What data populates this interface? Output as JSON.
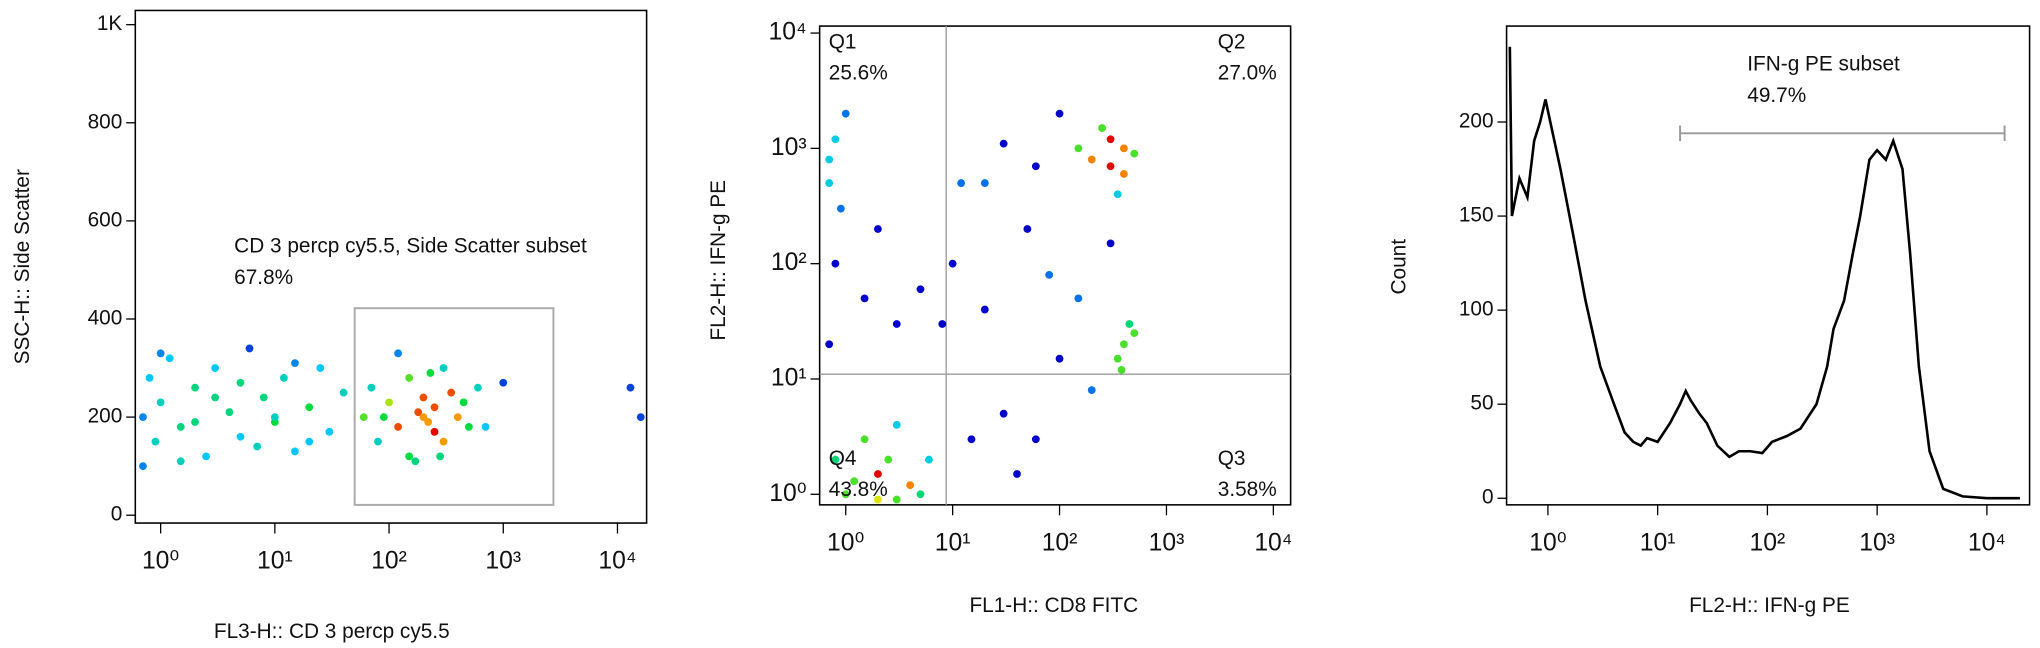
{
  "chart_data": [
    {
      "type": "scatter",
      "xlabel": "FL3-H:: CD 3 percp cy5.5",
      "ylabel": "SSC-H:: Side Scatter",
      "xscale": "log",
      "yscale": "linear",
      "xlim": [
        0.6,
        18000
      ],
      "ylim": [
        -16,
        1029
      ],
      "xticks": [
        {
          "value": 1,
          "label": "10⁰"
        },
        {
          "value": 10,
          "label": "10¹"
        },
        {
          "value": 100,
          "label": "10²"
        },
        {
          "value": 1000,
          "label": "10³"
        },
        {
          "value": 10000,
          "label": "10⁴"
        }
      ],
      "yticks": [
        0,
        200,
        400,
        600,
        800,
        {
          "value": 1000,
          "label": "1K"
        }
      ],
      "x": [
        0.7,
        0.8,
        0.9,
        1,
        1.2,
        1.5,
        2,
        2.5,
        3,
        4,
        5,
        6,
        8,
        10,
        12,
        15,
        20,
        25,
        30,
        40,
        0.7,
        1,
        1.5,
        2,
        3,
        5,
        7,
        10,
        15,
        20,
        60,
        70,
        80,
        100,
        120,
        150,
        150,
        180,
        200,
        200,
        220,
        250,
        250,
        300,
        300,
        350,
        400,
        450,
        500,
        120,
        170,
        230,
        280,
        90,
        600,
        700,
        1000,
        13000,
        16000
      ],
      "y": [
        200,
        280,
        150,
        230,
        320,
        180,
        260,
        120,
        300,
        210,
        160,
        340,
        240,
        190,
        280,
        130,
        220,
        300,
        170,
        250,
        100,
        330,
        110,
        190,
        240,
        270,
        140,
        200,
        310,
        150,
        200,
        260,
        150,
        230,
        180,
        280,
        120,
        210,
        200,
        240,
        190,
        170,
        220,
        300,
        150,
        250,
        200,
        230,
        180,
        330,
        110,
        290,
        120,
        200,
        260,
        180,
        270,
        260,
        200
      ],
      "gate": {
        "x": [
          50,
          2750
        ],
        "y": [
          21,
          422
        ]
      },
      "annotations": [
        "CD 3 percp cy5.5, Side Scatter subset",
        "67.8%"
      ]
    },
    {
      "type": "scatter",
      "xlabel": "FL1-H:: CD8 FITC",
      "ylabel": "FL2-H:: IFN-g PE",
      "xscale": "log",
      "yscale": "log",
      "xlim": [
        0.57,
        14500
      ],
      "ylim": [
        0.81,
        11500
      ],
      "xticks": [
        {
          "value": 1,
          "label": "10⁰"
        },
        {
          "value": 10,
          "label": "10¹"
        },
        {
          "value": 100,
          "label": "10²"
        },
        {
          "value": 1000,
          "label": "10³"
        },
        {
          "value": 10000,
          "label": "10⁴"
        }
      ],
      "yticks": [
        {
          "value": 1,
          "label": "10⁰"
        },
        {
          "value": 10,
          "label": "10¹"
        },
        {
          "value": 100,
          "label": "10²"
        },
        {
          "value": 1000,
          "label": "10³"
        },
        {
          "value": 10000,
          "label": "10⁴"
        }
      ],
      "x": [
        1,
        2,
        3,
        1.5,
        2.5,
        4,
        0.8,
        3,
        5,
        2,
        1.2,
        6,
        0.7,
        0.8,
        0.7,
        0.9,
        1,
        0.8,
        1.5,
        2,
        3,
        0.7,
        150,
        200,
        300,
        400,
        250,
        500,
        350,
        100,
        60,
        30,
        20,
        400,
        300,
        400,
        450,
        350,
        500,
        380,
        10,
        20,
        50,
        100,
        30,
        60,
        150,
        200,
        15,
        80,
        40,
        8,
        5,
        300,
        12
      ],
      "y": [
        1,
        1.5,
        0.9,
        3,
        2,
        1.2,
        2,
        4,
        1,
        0.9,
        1.3,
        2,
        800,
        1200,
        500,
        300,
        2000,
        100,
        50,
        200,
        30,
        20,
        1000,
        800,
        1200,
        600,
        1500,
        900,
        400,
        2000,
        700,
        1100,
        500,
        1000,
        700,
        20,
        30,
        15,
        25,
        12,
        100,
        40,
        200,
        15,
        5,
        3,
        50,
        8,
        3,
        80,
        1.5,
        30,
        60,
        150,
        500
      ],
      "quadrant": {
        "x": 8.7,
        "y": 11
      },
      "annotations": [
        "Q1",
        "25.6%",
        "Q2",
        "27.0%",
        "Q3",
        "3.58%",
        "Q4",
        "43.8%"
      ]
    },
    {
      "type": "line",
      "xlabel": "FL2-H:: IFN-g PE",
      "ylabel": "Count",
      "xscale": "log",
      "yscale": "linear",
      "xlim": [
        0.42,
        24500
      ],
      "ylim": [
        -3.5,
        251
      ],
      "xticks": [
        {
          "value": 1,
          "label": "10⁰"
        },
        {
          "value": 10,
          "label": "10¹"
        },
        {
          "value": 100,
          "label": "10²"
        },
        {
          "value": 1000,
          "label": "10³"
        },
        {
          "value": 10000,
          "label": "10⁴"
        }
      ],
      "yticks": [
        0,
        50,
        100,
        150,
        200
      ],
      "x": [
        0.45,
        0.47,
        0.55,
        0.65,
        0.75,
        0.85,
        0.95,
        1.05,
        1.3,
        1.7,
        2.2,
        3,
        4,
        5,
        6,
        7,
        8,
        10,
        13,
        16,
        18,
        20,
        24,
        28,
        35,
        45,
        55,
        70,
        90,
        110,
        150,
        200,
        280,
        350,
        400,
        500,
        600,
        700,
        850,
        1000,
        1200,
        1400,
        1700,
        2000,
        2400,
        3000,
        4000,
        6000,
        10000,
        20000
      ],
      "y": [
        240,
        150,
        170,
        160,
        190,
        200,
        212,
        200,
        175,
        140,
        105,
        70,
        50,
        35,
        30,
        28,
        32,
        30,
        40,
        50,
        57,
        52,
        45,
        40,
        28,
        22,
        25,
        25,
        24,
        30,
        33,
        37,
        50,
        70,
        90,
        105,
        130,
        150,
        180,
        185,
        180,
        190,
        175,
        130,
        70,
        25,
        5,
        1,
        0,
        0
      ],
      "gate": {
        "x": [
          16,
          14500
        ],
        "y": 194
      },
      "annotations": [
        "IFN-g PE subset",
        "49.7%"
      ]
    }
  ]
}
